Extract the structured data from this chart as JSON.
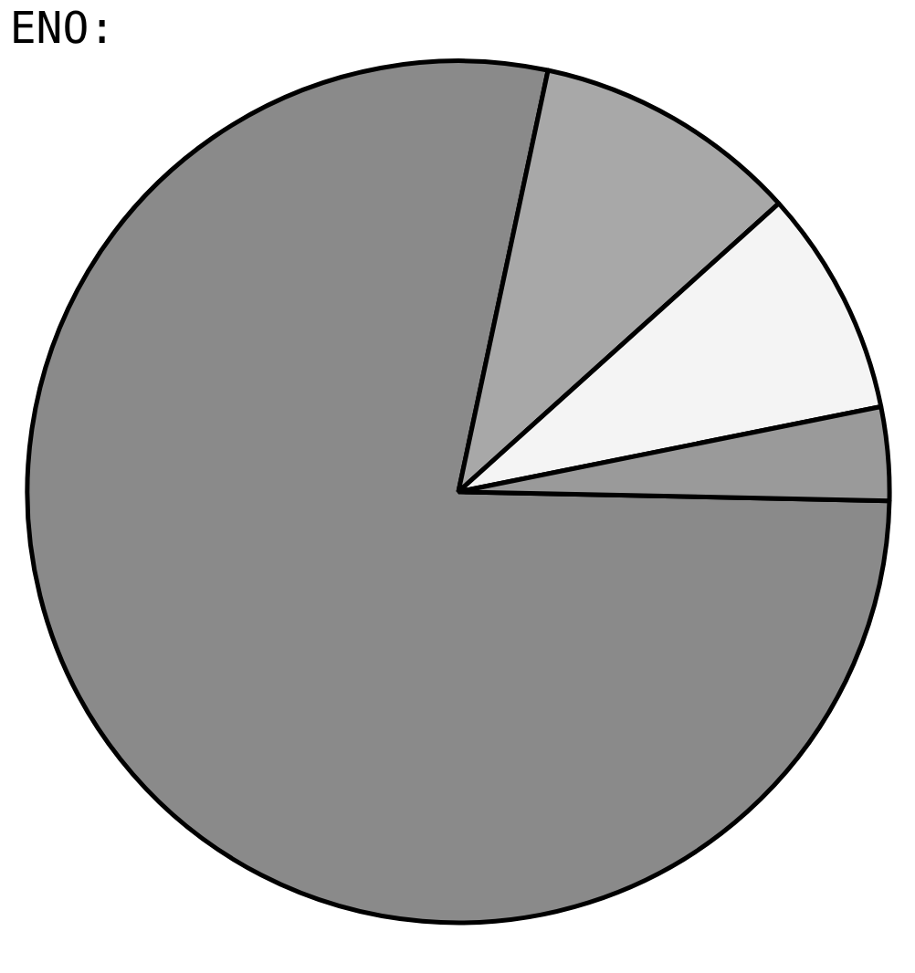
{
  "chart_data": {
    "type": "pie",
    "title": "ENO:",
    "categories": [
      null,
      null,
      null,
      null
    ],
    "values": [
      78,
      10,
      8.5,
      3.5
    ],
    "colors": [
      "#8a8a8a",
      "#a8a8a8",
      "#f4f4f4",
      "#9a9a9a"
    ]
  }
}
